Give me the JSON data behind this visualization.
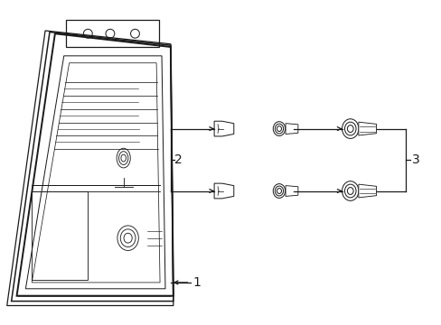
{
  "bg_color": "#ffffff",
  "line_color": "#1a1a1a",
  "label_fontsize": 10,
  "lw": 0.9
}
